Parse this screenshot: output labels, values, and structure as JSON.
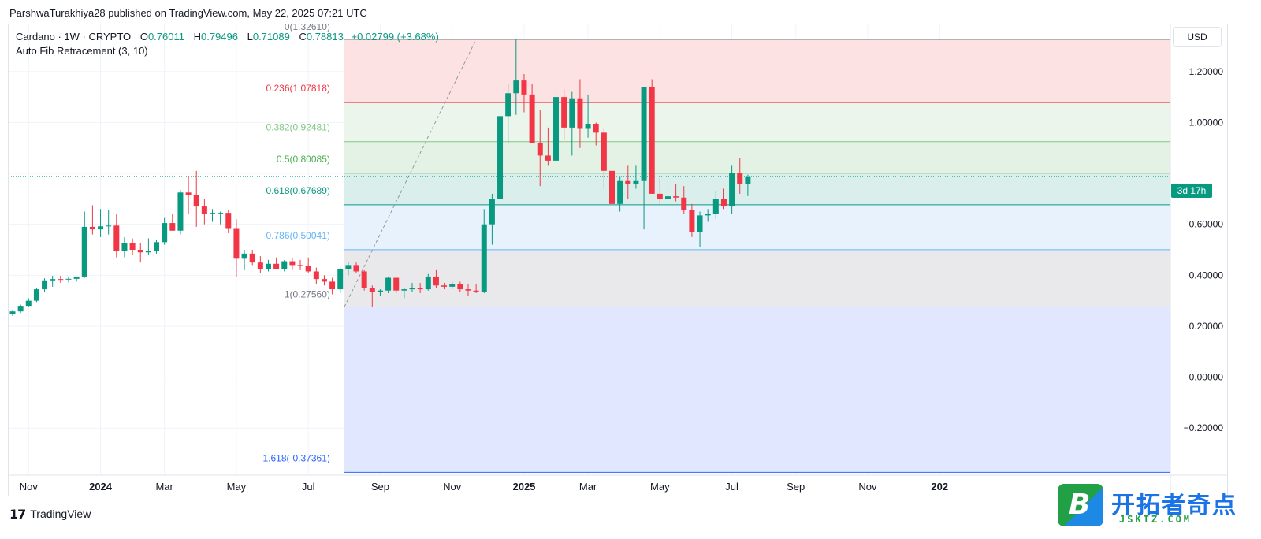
{
  "attribution": "ParshwaTurakhiya28 published on TradingView.com, May 22, 2025 07:21 UTC",
  "legend": {
    "symbol": "Cardano · 1W · CRYPTO",
    "open_label": "O",
    "open": "0.76011",
    "high_label": "H",
    "high": "0.79496",
    "low_label": "L",
    "low": "0.71089",
    "close_label": "C",
    "close": "0.78813",
    "change": "+0.02799 (+3.68%)"
  },
  "indicator": "Auto Fib Retracement (3, 10)",
  "currency": "USD",
  "countdown": "3d 17h",
  "brand": {
    "name": "TradingView",
    "logo_icon": "tradingview-logo-icon"
  },
  "watermark": {
    "badge": "B",
    "cn": "开拓者奇点",
    "en": "JSKTZ.COM"
  },
  "colors": {
    "up": "#089981",
    "down": "#f23645",
    "price_line": "#089981"
  },
  "chart_data": {
    "type": "candlestick",
    "y_axis": {
      "range": [
        -0.385,
        1.385
      ],
      "ticks": [
        1.2,
        1.0,
        0.8,
        0.6,
        0.4,
        0.2,
        0.0,
        -0.2
      ],
      "tick_labels": [
        "1.20000",
        "1.00000",
        "",
        "0.60000",
        "0.40000",
        "0.20000",
        "0.00000",
        "−0.20000"
      ]
    },
    "x_axis": {
      "labels": [
        {
          "label": "Nov",
          "bar": 2,
          "bold": false
        },
        {
          "label": "2024",
          "bar": 11,
          "bold": true
        },
        {
          "label": "Mar",
          "bar": 19,
          "bold": false
        },
        {
          "label": "May",
          "bar": 28,
          "bold": false
        },
        {
          "label": "Jul",
          "bar": 37,
          "bold": false
        },
        {
          "label": "Sep",
          "bar": 46,
          "bold": false
        },
        {
          "label": "Nov",
          "bar": 55,
          "bold": false
        },
        {
          "label": "2025",
          "bar": 64,
          "bold": true
        },
        {
          "label": "Mar",
          "bar": 72,
          "bold": false
        },
        {
          "label": "May",
          "bar": 81,
          "bold": false
        },
        {
          "label": "Jul",
          "bar": 90,
          "bold": false
        },
        {
          "label": "Sep",
          "bar": 98,
          "bold": false
        },
        {
          "label": "Nov",
          "bar": 107,
          "bold": false
        },
        {
          "label": "202",
          "bar": 116,
          "bold": true
        }
      ]
    },
    "current_price": 0.78813,
    "fib": {
      "start_bar": 42,
      "from_price": 0.2756,
      "to_price": 1.3261,
      "anchor_high_bar": 58,
      "levels": [
        {
          "ratio": "0",
          "price": 1.3261,
          "label": "0(1.32610)",
          "line": "#787b86",
          "text": "#787b86",
          "fill_above": null
        },
        {
          "ratio": "0.236",
          "price": 1.07818,
          "label": "0.236(1.07818)",
          "line": "#f23645",
          "text": "#f23645",
          "fill_above": "#fde2e3"
        },
        {
          "ratio": "0.382",
          "price": 0.92481,
          "label": "0.382(0.92481)",
          "line": "#81c784",
          "text": "#81c784",
          "fill_above": "#ebf5ec"
        },
        {
          "ratio": "0.5",
          "price": 0.80085,
          "label": "0.5(0.80085)",
          "line": "#4caf50",
          "text": "#4caf50",
          "fill_above": "#e4f2e5"
        },
        {
          "ratio": "0.618",
          "price": 0.67689,
          "label": "0.618(0.67689)",
          "line": "#089981",
          "text": "#089981",
          "fill_above": "#daefec"
        },
        {
          "ratio": "0.786",
          "price": 0.50041,
          "label": "0.786(0.50041)",
          "line": "#64b5f6",
          "text": "#64b5f6",
          "fill_above": "#e7f2fd"
        },
        {
          "ratio": "1",
          "price": 0.2756,
          "label": "1(0.27560)",
          "line": "#787b86",
          "text": "#787b86",
          "fill_above": "#e9e9eb"
        },
        {
          "ratio": "1.618",
          "price": -0.37361,
          "label": "1.618(-0.37361)",
          "line": "#2962ff",
          "text": "#2962ff",
          "fill_above": "#e0e7fe"
        }
      ]
    },
    "candles": [
      {
        "o": 0.247,
        "h": 0.262,
        "l": 0.24,
        "c": 0.258
      },
      {
        "o": 0.258,
        "h": 0.285,
        "l": 0.252,
        "c": 0.28
      },
      {
        "o": 0.28,
        "h": 0.31,
        "l": 0.275,
        "c": 0.3
      },
      {
        "o": 0.3,
        "h": 0.35,
        "l": 0.295,
        "c": 0.345
      },
      {
        "o": 0.345,
        "h": 0.388,
        "l": 0.335,
        "c": 0.38
      },
      {
        "o": 0.38,
        "h": 0.398,
        "l": 0.355,
        "c": 0.385
      },
      {
        "o": 0.385,
        "h": 0.398,
        "l": 0.37,
        "c": 0.383
      },
      {
        "o": 0.383,
        "h": 0.395,
        "l": 0.372,
        "c": 0.386
      },
      {
        "o": 0.386,
        "h": 0.39,
        "l": 0.375,
        "c": 0.395
      },
      {
        "o": 0.395,
        "h": 0.65,
        "l": 0.39,
        "c": 0.59
      },
      {
        "o": 0.59,
        "h": 0.675,
        "l": 0.56,
        "c": 0.58
      },
      {
        "o": 0.58,
        "h": 0.66,
        "l": 0.55,
        "c": 0.592
      },
      {
        "o": 0.592,
        "h": 0.655,
        "l": 0.56,
        "c": 0.595
      },
      {
        "o": 0.595,
        "h": 0.64,
        "l": 0.47,
        "c": 0.495
      },
      {
        "o": 0.495,
        "h": 0.55,
        "l": 0.47,
        "c": 0.525
      },
      {
        "o": 0.525,
        "h": 0.545,
        "l": 0.48,
        "c": 0.5
      },
      {
        "o": 0.5,
        "h": 0.525,
        "l": 0.45,
        "c": 0.49
      },
      {
        "o": 0.49,
        "h": 0.545,
        "l": 0.48,
        "c": 0.495
      },
      {
        "o": 0.495,
        "h": 0.54,
        "l": 0.485,
        "c": 0.53
      },
      {
        "o": 0.53,
        "h": 0.625,
        "l": 0.52,
        "c": 0.605
      },
      {
        "o": 0.605,
        "h": 0.64,
        "l": 0.575,
        "c": 0.575
      },
      {
        "o": 0.575,
        "h": 0.735,
        "l": 0.56,
        "c": 0.725
      },
      {
        "o": 0.725,
        "h": 0.79,
        "l": 0.64,
        "c": 0.715
      },
      {
        "o": 0.715,
        "h": 0.81,
        "l": 0.59,
        "c": 0.67
      },
      {
        "o": 0.67,
        "h": 0.7,
        "l": 0.6,
        "c": 0.64
      },
      {
        "o": 0.64,
        "h": 0.66,
        "l": 0.61,
        "c": 0.645
      },
      {
        "o": 0.645,
        "h": 0.65,
        "l": 0.6,
        "c": 0.645
      },
      {
        "o": 0.645,
        "h": 0.655,
        "l": 0.565,
        "c": 0.585
      },
      {
        "o": 0.585,
        "h": 0.62,
        "l": 0.395,
        "c": 0.465
      },
      {
        "o": 0.465,
        "h": 0.5,
        "l": 0.42,
        "c": 0.485
      },
      {
        "o": 0.485,
        "h": 0.5,
        "l": 0.44,
        "c": 0.45
      },
      {
        "o": 0.45,
        "h": 0.475,
        "l": 0.41,
        "c": 0.425
      },
      {
        "o": 0.425,
        "h": 0.46,
        "l": 0.415,
        "c": 0.445
      },
      {
        "o": 0.445,
        "h": 0.47,
        "l": 0.43,
        "c": 0.425
      },
      {
        "o": 0.425,
        "h": 0.46,
        "l": 0.415,
        "c": 0.455
      },
      {
        "o": 0.455,
        "h": 0.47,
        "l": 0.42,
        "c": 0.44
      },
      {
        "o": 0.44,
        "h": 0.46,
        "l": 0.42,
        "c": 0.435
      },
      {
        "o": 0.435,
        "h": 0.47,
        "l": 0.41,
        "c": 0.415
      },
      {
        "o": 0.415,
        "h": 0.43,
        "l": 0.365,
        "c": 0.385
      },
      {
        "o": 0.385,
        "h": 0.4,
        "l": 0.36,
        "c": 0.375
      },
      {
        "o": 0.375,
        "h": 0.39,
        "l": 0.325,
        "c": 0.345
      },
      {
        "o": 0.345,
        "h": 0.43,
        "l": 0.33,
        "c": 0.425
      },
      {
        "o": 0.425,
        "h": 0.45,
        "l": 0.4,
        "c": 0.44
      },
      {
        "o": 0.44,
        "h": 0.45,
        "l": 0.41,
        "c": 0.415
      },
      {
        "o": 0.415,
        "h": 0.42,
        "l": 0.34,
        "c": 0.35
      },
      {
        "o": 0.35,
        "h": 0.36,
        "l": 0.276,
        "c": 0.335
      },
      {
        "o": 0.335,
        "h": 0.345,
        "l": 0.32,
        "c": 0.34
      },
      {
        "o": 0.34,
        "h": 0.395,
        "l": 0.33,
        "c": 0.39
      },
      {
        "o": 0.39,
        "h": 0.395,
        "l": 0.33,
        "c": 0.34
      },
      {
        "o": 0.34,
        "h": 0.35,
        "l": 0.31,
        "c": 0.345
      },
      {
        "o": 0.345,
        "h": 0.37,
        "l": 0.335,
        "c": 0.35
      },
      {
        "o": 0.35,
        "h": 0.37,
        "l": 0.33,
        "c": 0.345
      },
      {
        "o": 0.345,
        "h": 0.405,
        "l": 0.34,
        "c": 0.395
      },
      {
        "o": 0.395,
        "h": 0.42,
        "l": 0.35,
        "c": 0.36
      },
      {
        "o": 0.36,
        "h": 0.37,
        "l": 0.345,
        "c": 0.355
      },
      {
        "o": 0.355,
        "h": 0.375,
        "l": 0.345,
        "c": 0.365
      },
      {
        "o": 0.365,
        "h": 0.375,
        "l": 0.335,
        "c": 0.345
      },
      {
        "o": 0.345,
        "h": 0.365,
        "l": 0.32,
        "c": 0.34
      },
      {
        "o": 0.34,
        "h": 0.365,
        "l": 0.33,
        "c": 0.335
      },
      {
        "o": 0.335,
        "h": 0.66,
        "l": 0.33,
        "c": 0.6
      },
      {
        "o": 0.6,
        "h": 0.72,
        "l": 0.52,
        "c": 0.7
      },
      {
        "o": 0.7,
        "h": 1.03,
        "l": 0.7,
        "c": 1.025
      },
      {
        "o": 1.025,
        "h": 1.15,
        "l": 0.92,
        "c": 1.115
      },
      {
        "o": 1.115,
        "h": 1.326,
        "l": 1.03,
        "c": 1.165
      },
      {
        "o": 1.165,
        "h": 1.19,
        "l": 1.04,
        "c": 1.11
      },
      {
        "o": 1.11,
        "h": 1.15,
        "l": 0.92,
        "c": 0.92
      },
      {
        "o": 0.92,
        "h": 1.05,
        "l": 0.75,
        "c": 0.87
      },
      {
        "o": 0.87,
        "h": 0.98,
        "l": 0.83,
        "c": 0.85
      },
      {
        "o": 0.85,
        "h": 1.12,
        "l": 0.84,
        "c": 1.1
      },
      {
        "o": 1.1,
        "h": 1.13,
        "l": 0.93,
        "c": 0.98
      },
      {
        "o": 0.98,
        "h": 1.12,
        "l": 0.87,
        "c": 1.095
      },
      {
        "o": 1.095,
        "h": 1.17,
        "l": 0.9,
        "c": 0.975
      },
      {
        "o": 0.975,
        "h": 1.11,
        "l": 0.94,
        "c": 0.995
      },
      {
        "o": 0.995,
        "h": 1.0,
        "l": 0.91,
        "c": 0.96
      },
      {
        "o": 0.96,
        "h": 0.98,
        "l": 0.74,
        "c": 0.81
      },
      {
        "o": 0.81,
        "h": 0.84,
        "l": 0.51,
        "c": 0.68
      },
      {
        "o": 0.68,
        "h": 0.79,
        "l": 0.65,
        "c": 0.77
      },
      {
        "o": 0.77,
        "h": 0.83,
        "l": 0.7,
        "c": 0.76
      },
      {
        "o": 0.76,
        "h": 0.83,
        "l": 0.74,
        "c": 0.77
      },
      {
        "o": 0.77,
        "h": 1.14,
        "l": 0.58,
        "c": 1.14
      },
      {
        "o": 1.14,
        "h": 1.17,
        "l": 0.72,
        "c": 0.72
      },
      {
        "o": 0.72,
        "h": 0.78,
        "l": 0.68,
        "c": 0.7
      },
      {
        "o": 0.7,
        "h": 0.79,
        "l": 0.67,
        "c": 0.71
      },
      {
        "o": 0.71,
        "h": 0.76,
        "l": 0.69,
        "c": 0.705
      },
      {
        "o": 0.705,
        "h": 0.75,
        "l": 0.64,
        "c": 0.655
      },
      {
        "o": 0.655,
        "h": 0.68,
        "l": 0.55,
        "c": 0.57
      },
      {
        "o": 0.57,
        "h": 0.65,
        "l": 0.51,
        "c": 0.635
      },
      {
        "o": 0.635,
        "h": 0.66,
        "l": 0.61,
        "c": 0.64
      },
      {
        "o": 0.64,
        "h": 0.73,
        "l": 0.62,
        "c": 0.7
      },
      {
        "o": 0.7,
        "h": 0.74,
        "l": 0.66,
        "c": 0.67
      },
      {
        "o": 0.67,
        "h": 0.83,
        "l": 0.64,
        "c": 0.8
      },
      {
        "o": 0.8,
        "h": 0.86,
        "l": 0.72,
        "c": 0.76
      },
      {
        "o": 0.76,
        "h": 0.795,
        "l": 0.711,
        "c": 0.788
      }
    ]
  }
}
